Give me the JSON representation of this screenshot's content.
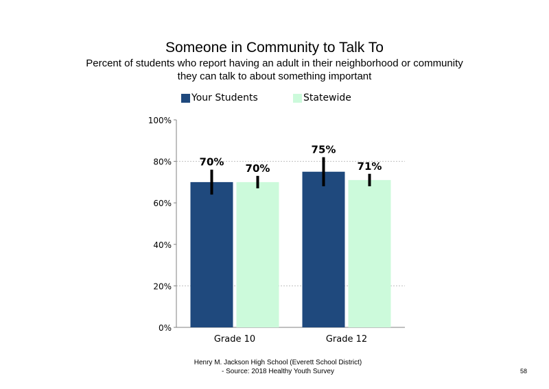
{
  "chart_data": {
    "type": "bar",
    "title": "Someone in Community to Talk To",
    "subtitle_lines": [
      "Percent of students who report having an adult in their neighborhood or community",
      "they can talk to about something important"
    ],
    "categories": [
      "Grade 10",
      "Grade 12"
    ],
    "series": [
      {
        "name": "Your Students",
        "color": "#1f497d",
        "values": [
          70,
          75
        ],
        "labels": [
          "70%",
          "75%"
        ],
        "error_low": [
          64,
          68
        ],
        "error_high": [
          76,
          82
        ]
      },
      {
        "name": "Statewide",
        "color": "#ccfadb",
        "values": [
          70,
          71
        ],
        "labels": [
          "70%",
          "71%"
        ],
        "error_low": [
          67,
          68
        ],
        "error_high": [
          73,
          74
        ]
      }
    ],
    "ylim": [
      0,
      100
    ],
    "yticks": [
      0,
      20,
      40,
      60,
      80,
      100
    ],
    "ytick_labels": [
      "0%",
      "20%",
      "40%",
      "60%",
      "80%",
      "100%"
    ],
    "grid": "dashed horizontal at 20%, 80%",
    "legend_position": "top"
  },
  "footer": {
    "line1": "Henry M. Jackson High School (Everett School District)",
    "line2": "- Source: 2018 Healthy Youth Survey"
  },
  "page_number": "58"
}
